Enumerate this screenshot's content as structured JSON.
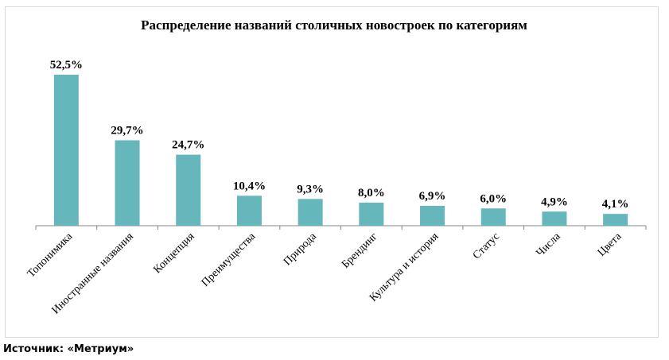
{
  "chart_data": {
    "type": "bar",
    "title": "Распределение названий столичных новостроек по категориям",
    "categories": [
      "Топонимика",
      "Иностранные названия",
      "Концепция",
      "Преимущества",
      "Природа",
      "Брендинг",
      "Культура и история",
      "Статус",
      "Числа",
      "Цвета"
    ],
    "values": [
      52.5,
      29.7,
      24.7,
      10.4,
      9.3,
      8.0,
      6.9,
      6.0,
      4.9,
      4.1
    ],
    "value_labels": [
      "52,5%",
      "29,7%",
      "24,7%",
      "10,4%",
      "9,3%",
      "8,0%",
      "6,9%",
      "6,0%",
      "4,9%",
      "4,1%"
    ],
    "unit": "%",
    "ylim": [
      0,
      52.5
    ],
    "grid": false,
    "legend": "none",
    "bar_color": "#65b7bb"
  },
  "source": "Источник: «Метриум»"
}
